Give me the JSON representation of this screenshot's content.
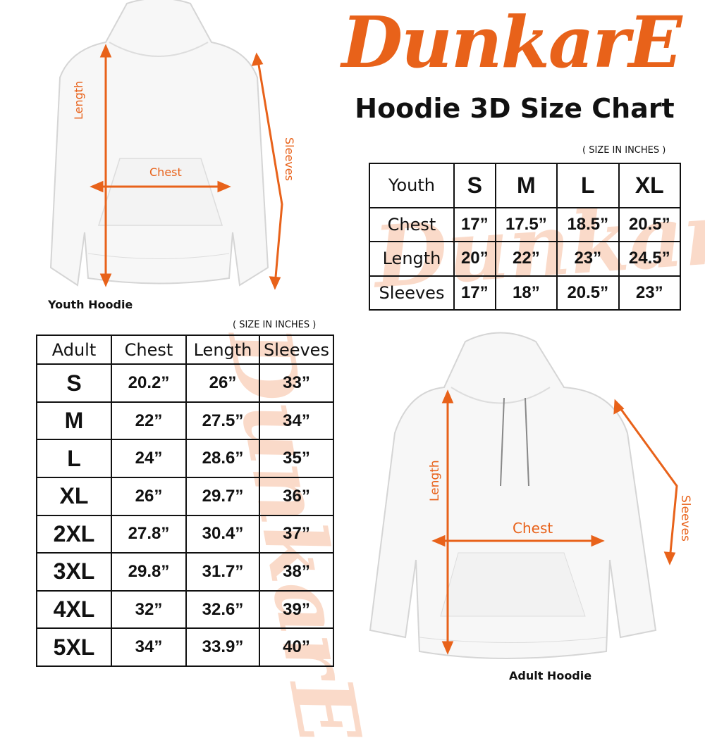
{
  "brand": {
    "logo_text": "DunkarE",
    "color": "#E8621A"
  },
  "title": "Hoodie 3D Size Chart",
  "youth": {
    "caption": "Youth Hoodie",
    "unit_note": "( SIZE IN INCHES )",
    "labels": {
      "length": "Length",
      "chest": "Chest",
      "sleeves": "Sleeves"
    },
    "table": {
      "header": [
        "Youth",
        "S",
        "M",
        "L",
        "XL"
      ],
      "rows": [
        [
          "Chest",
          "17”",
          "17.5”",
          "18.5”",
          "20.5”"
        ],
        [
          "Length",
          "20”",
          "22”",
          "23”",
          "24.5”"
        ],
        [
          "Sleeves",
          "17”",
          "18”",
          "20.5”",
          "23”"
        ]
      ]
    }
  },
  "adult": {
    "caption": "Adult Hoodie",
    "unit_note": "( SIZE IN INCHES )",
    "labels": {
      "length": "Length",
      "chest": "Chest",
      "sleeves": "Sleeves"
    },
    "table": {
      "header": [
        "Adult",
        "Chest",
        "Length",
        "Sleeves"
      ],
      "rows": [
        [
          "S",
          "20.2”",
          "26”",
          "33”"
        ],
        [
          "M",
          "22”",
          "27.5”",
          "34”"
        ],
        [
          "L",
          "24”",
          "28.6”",
          "35”"
        ],
        [
          "XL",
          "26”",
          "29.7”",
          "36”"
        ],
        [
          "2XL",
          "27.8”",
          "30.4”",
          "37”"
        ],
        [
          "3XL",
          "29.8”",
          "31.7”",
          "38”"
        ],
        [
          "4XL",
          "32”",
          "32.6”",
          "39”"
        ],
        [
          "5XL",
          "34”",
          "33.9”",
          "40”"
        ]
      ]
    }
  }
}
